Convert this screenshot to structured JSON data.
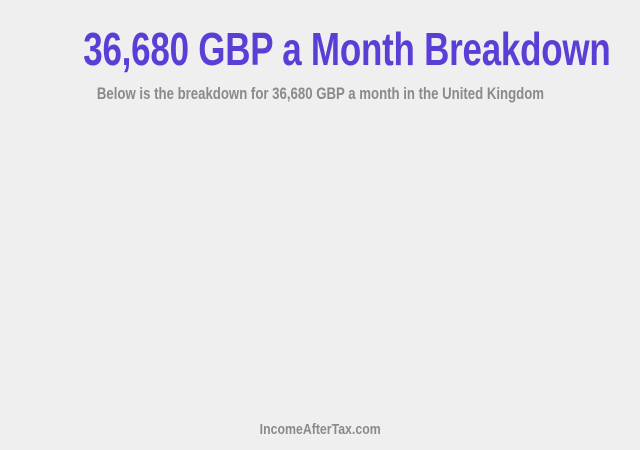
{
  "header": {
    "title": "36,680 GBP a Month Breakdown",
    "subtitle": "Below is the breakdown for 36,680 GBP a month in the United Kingdom"
  },
  "footer": {
    "site": "IncomeAfterTax.com"
  },
  "colors": {
    "title": "#5b3ed6",
    "text": "#8a8a8a",
    "background": "#efefef"
  }
}
